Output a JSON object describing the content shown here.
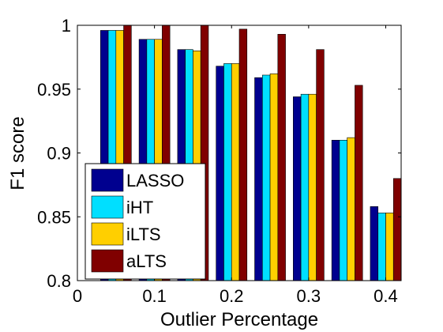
{
  "chart_data": {
    "type": "bar",
    "xlabel": "Outlier Percentage",
    "ylabel": "F1 score",
    "xlim": [
      0,
      0.42
    ],
    "ylim": [
      0.8,
      1.0
    ],
    "x_ticks": [
      "0",
      "0.1",
      "0.2",
      "0.3",
      "0.4"
    ],
    "y_ticks": [
      "0.8",
      "0.85",
      "0.9",
      "0.95",
      "1"
    ],
    "x": [
      0.05,
      0.1,
      0.15,
      0.2,
      0.25,
      0.3,
      0.35,
      0.4
    ],
    "series": [
      {
        "name": "LASSO",
        "color": "#00008F",
        "values": [
          0.996,
          0.989,
          0.981,
          0.968,
          0.959,
          0.944,
          0.91,
          0.858
        ]
      },
      {
        "name": "iHT",
        "color": "#00DFFF",
        "values": [
          0.996,
          0.989,
          0.981,
          0.97,
          0.961,
          0.946,
          0.91,
          0.853
        ]
      },
      {
        "name": "iLTS",
        "color": "#FFCF00",
        "values": [
          0.996,
          0.989,
          0.98,
          0.97,
          0.962,
          0.946,
          0.912,
          0.853
        ]
      },
      {
        "name": "aLTS",
        "color": "#800000",
        "values": [
          1.0,
          1.0,
          1.0,
          0.997,
          0.993,
          0.981,
          0.953,
          0.88
        ]
      }
    ],
    "legend_position": "bottom-left",
    "grid": false
  }
}
